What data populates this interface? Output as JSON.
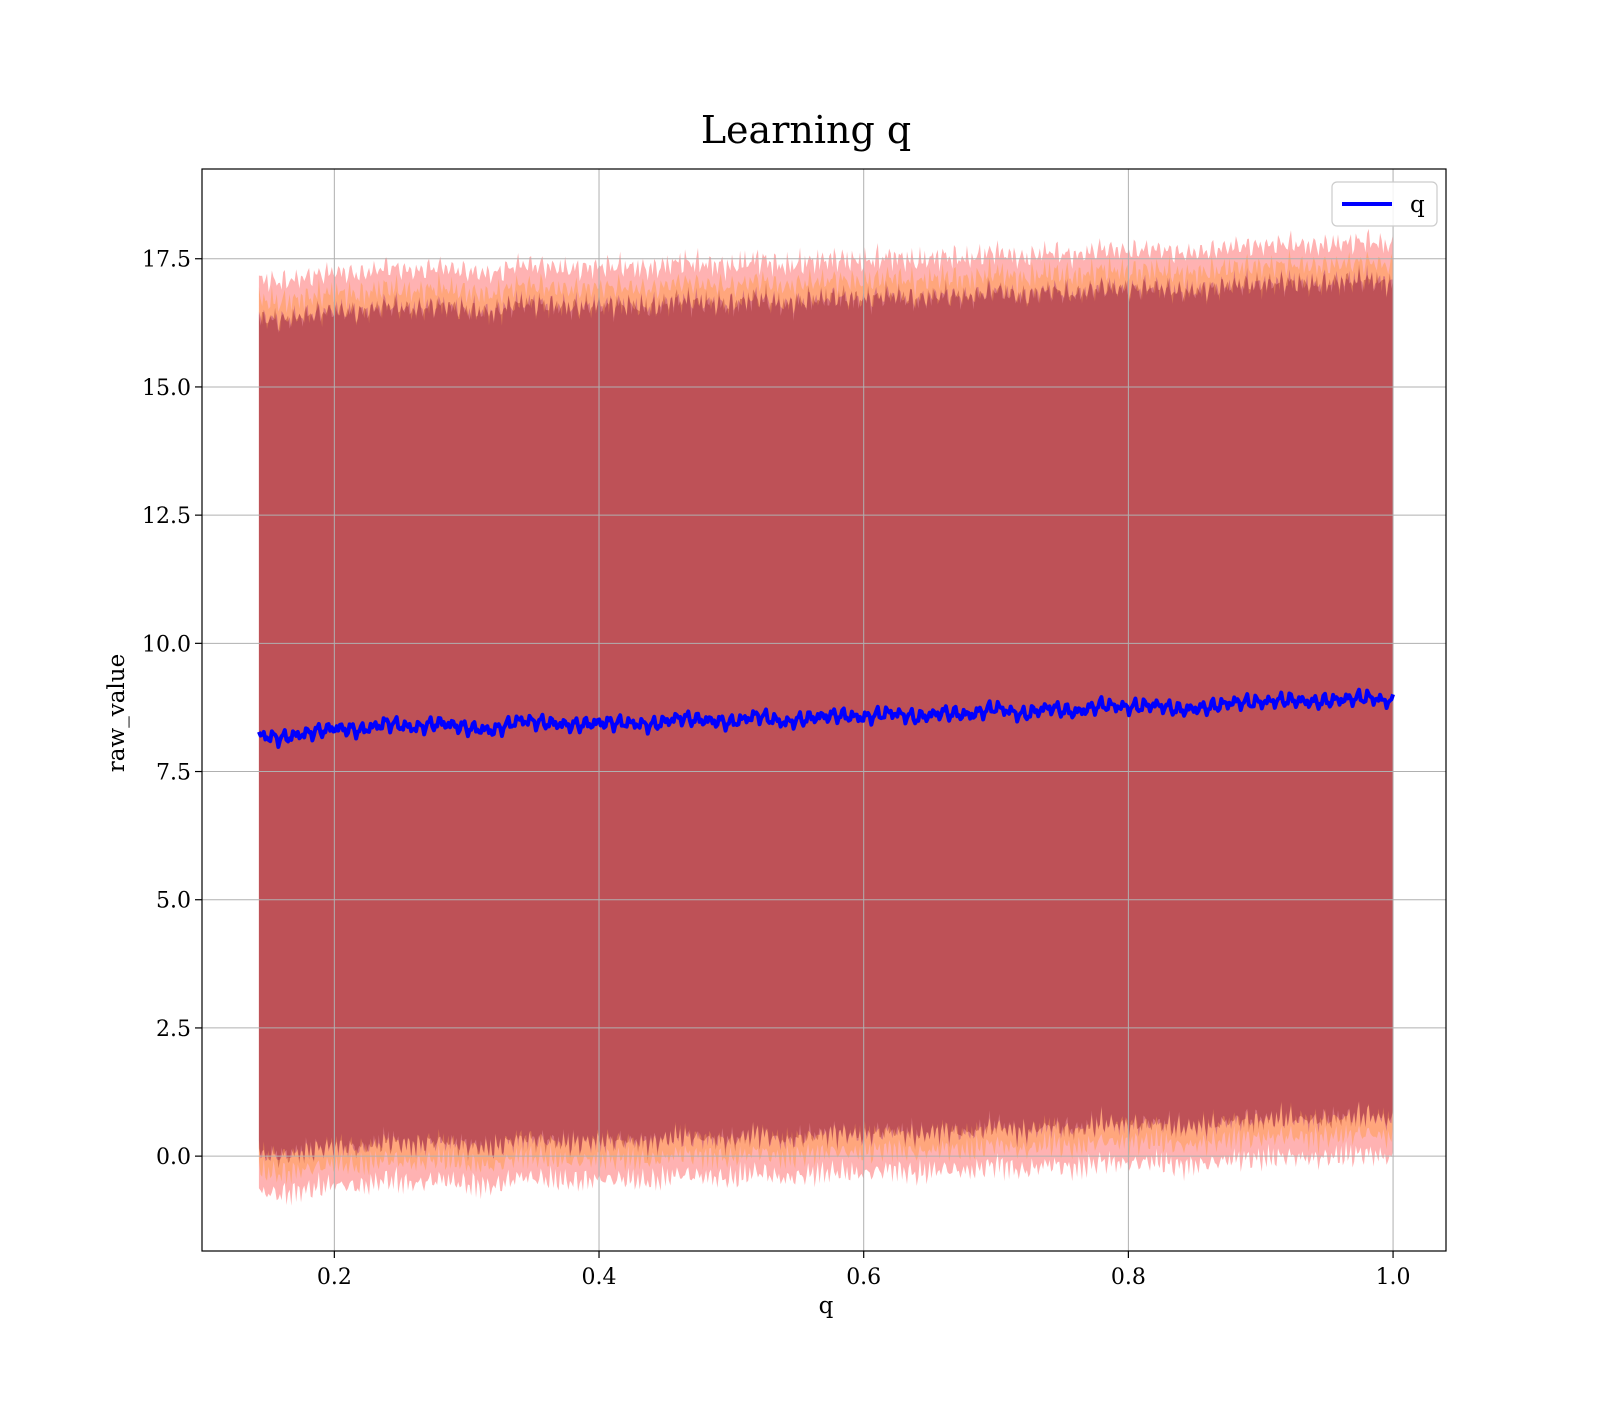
{
  "chart_data": {
    "type": "area",
    "title": "Learning q",
    "xlabel": "q",
    "ylabel": "raw_value",
    "xlim": [
      0.1,
      1.04
    ],
    "ylim": [
      -1.85,
      19.25
    ],
    "x_ticks": [
      0.2,
      0.4,
      0.6,
      0.8,
      1.0
    ],
    "x_tick_labels": [
      "0.2",
      "0.4",
      "0.6",
      "0.8",
      "1.0"
    ],
    "y_ticks": [
      0.0,
      2.5,
      5.0,
      7.5,
      10.0,
      12.5,
      15.0,
      17.5
    ],
    "y_tick_labels": [
      "0.0",
      "2.5",
      "5.0",
      "7.5",
      "10.0",
      "12.5",
      "15.0",
      "17.5"
    ],
    "grid": true,
    "legend": {
      "position": "top-right",
      "entries": [
        {
          "label": "q",
          "color": "#0000ff"
        }
      ]
    },
    "series": [
      {
        "name": "q",
        "color": "#0000ff",
        "x": [
          0.143,
          0.16,
          0.18,
          0.2,
          0.22,
          0.24,
          0.26,
          0.28,
          0.3,
          0.32,
          0.34,
          0.36,
          0.38,
          0.4,
          0.42,
          0.44,
          0.46,
          0.48,
          0.5,
          0.52,
          0.54,
          0.56,
          0.58,
          0.6,
          0.62,
          0.64,
          0.66,
          0.68,
          0.7,
          0.72,
          0.74,
          0.76,
          0.78,
          0.8,
          0.82,
          0.84,
          0.86,
          0.88,
          0.9,
          0.92,
          0.94,
          0.96,
          0.98,
          1.0
        ],
        "y": [
          8.2,
          8.15,
          8.25,
          8.35,
          8.3,
          8.45,
          8.35,
          8.45,
          8.35,
          8.3,
          8.5,
          8.45,
          8.4,
          8.45,
          8.45,
          8.4,
          8.55,
          8.5,
          8.45,
          8.6,
          8.45,
          8.55,
          8.6,
          8.55,
          8.65,
          8.55,
          8.65,
          8.6,
          8.75,
          8.6,
          8.75,
          8.65,
          8.8,
          8.75,
          8.8,
          8.7,
          8.75,
          8.85,
          8.85,
          8.9,
          8.85,
          8.9,
          8.95,
          8.85
        ]
      }
    ],
    "bands": [
      {
        "color": "#ff0000",
        "opacity": 0.3,
        "half_width": 8.9
      },
      {
        "color": "#ff8c00",
        "opacity": 0.3,
        "half_width": 8.5
      },
      {
        "color": "#800080",
        "opacity": 0.3,
        "half_width": 8.15
      },
      {
        "color": "#800000",
        "opacity": 0.3,
        "half_width": 8.15
      }
    ]
  }
}
